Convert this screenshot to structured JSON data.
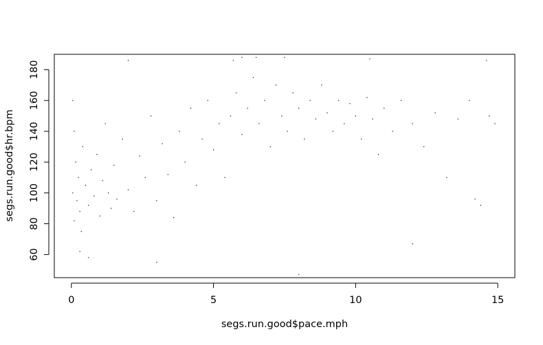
{
  "chart_data": {
    "type": "scatter",
    "title": "",
    "xlabel": "segs.run.good$pace.mph",
    "ylabel": "segs.run.good$hr.bpm",
    "xlim": [
      -0.6,
      15.6
    ],
    "ylim": [
      45,
      190
    ],
    "x_ticks": [
      0,
      5,
      10,
      15
    ],
    "y_ticks": [
      60,
      80,
      100,
      120,
      140,
      160,
      180
    ],
    "marker_color": "#000000",
    "grid": false,
    "legend": "none",
    "series": [
      {
        "points": [
          [
            0.05,
            100
          ],
          [
            0.1,
            82
          ],
          [
            0.15,
            120
          ],
          [
            0.2,
            95
          ],
          [
            0.1,
            140
          ],
          [
            0.25,
            110
          ],
          [
            0.3,
            88
          ],
          [
            0.05,
            160
          ],
          [
            0.4,
            130
          ],
          [
            0.35,
            75
          ],
          [
            0.5,
            105
          ],
          [
            0.6,
            92
          ],
          [
            0.7,
            115
          ],
          [
            0.8,
            98
          ],
          [
            0.9,
            125
          ],
          [
            1.0,
            85
          ],
          [
            1.1,
            108
          ],
          [
            1.2,
            145
          ],
          [
            1.3,
            100
          ],
          [
            1.4,
            90
          ],
          [
            1.5,
            118
          ],
          [
            1.6,
            96
          ],
          [
            1.8,
            135
          ],
          [
            2.0,
            102
          ],
          [
            2.2,
            88
          ],
          [
            2.4,
            124
          ],
          [
            2.6,
            110
          ],
          [
            2.8,
            150
          ],
          [
            3.0,
            95
          ],
          [
            3.2,
            132
          ],
          [
            3.4,
            112
          ],
          [
            3.6,
            84
          ],
          [
            3.8,
            140
          ],
          [
            4.0,
            120
          ],
          [
            4.2,
            155
          ],
          [
            4.4,
            105
          ],
          [
            4.6,
            135
          ],
          [
            4.8,
            160
          ],
          [
            5.0,
            128
          ],
          [
            5.2,
            145
          ],
          [
            5.4,
            110
          ],
          [
            5.6,
            150
          ],
          [
            5.8,
            165
          ],
          [
            6.0,
            138
          ],
          [
            6.2,
            155
          ],
          [
            6.4,
            175
          ],
          [
            6.6,
            145
          ],
          [
            6.8,
            160
          ],
          [
            7.0,
            130
          ],
          [
            7.2,
            170
          ],
          [
            7.4,
            150
          ],
          [
            7.6,
            140
          ],
          [
            7.8,
            165
          ],
          [
            8.0,
            155
          ],
          [
            8.2,
            135
          ],
          [
            8.4,
            160
          ],
          [
            8.6,
            148
          ],
          [
            8.8,
            170
          ],
          [
            9.0,
            152
          ],
          [
            9.2,
            140
          ],
          [
            9.4,
            160
          ],
          [
            9.6,
            145
          ],
          [
            9.8,
            158
          ],
          [
            10.0,
            150
          ],
          [
            10.2,
            135
          ],
          [
            10.4,
            162
          ],
          [
            10.6,
            148
          ],
          [
            10.8,
            125
          ],
          [
            11.0,
            155
          ],
          [
            11.3,
            140
          ],
          [
            11.6,
            160
          ],
          [
            12.0,
            145
          ],
          [
            12.4,
            130
          ],
          [
            12.8,
            152
          ],
          [
            13.2,
            110
          ],
          [
            13.6,
            148
          ],
          [
            14.0,
            160
          ],
          [
            14.4,
            92
          ],
          [
            14.7,
            150
          ],
          [
            14.9,
            145
          ],
          [
            0.3,
            62
          ],
          [
            0.6,
            58
          ],
          [
            3.0,
            55
          ],
          [
            8.0,
            47
          ],
          [
            6.0,
            188
          ],
          [
            6.5,
            188
          ],
          [
            7.5,
            188
          ],
          [
            5.7,
            186
          ],
          [
            2.0,
            186
          ],
          [
            10.5,
            187
          ],
          [
            14.6,
            186
          ],
          [
            12.0,
            67
          ],
          [
            14.2,
            96
          ]
        ]
      }
    ]
  }
}
